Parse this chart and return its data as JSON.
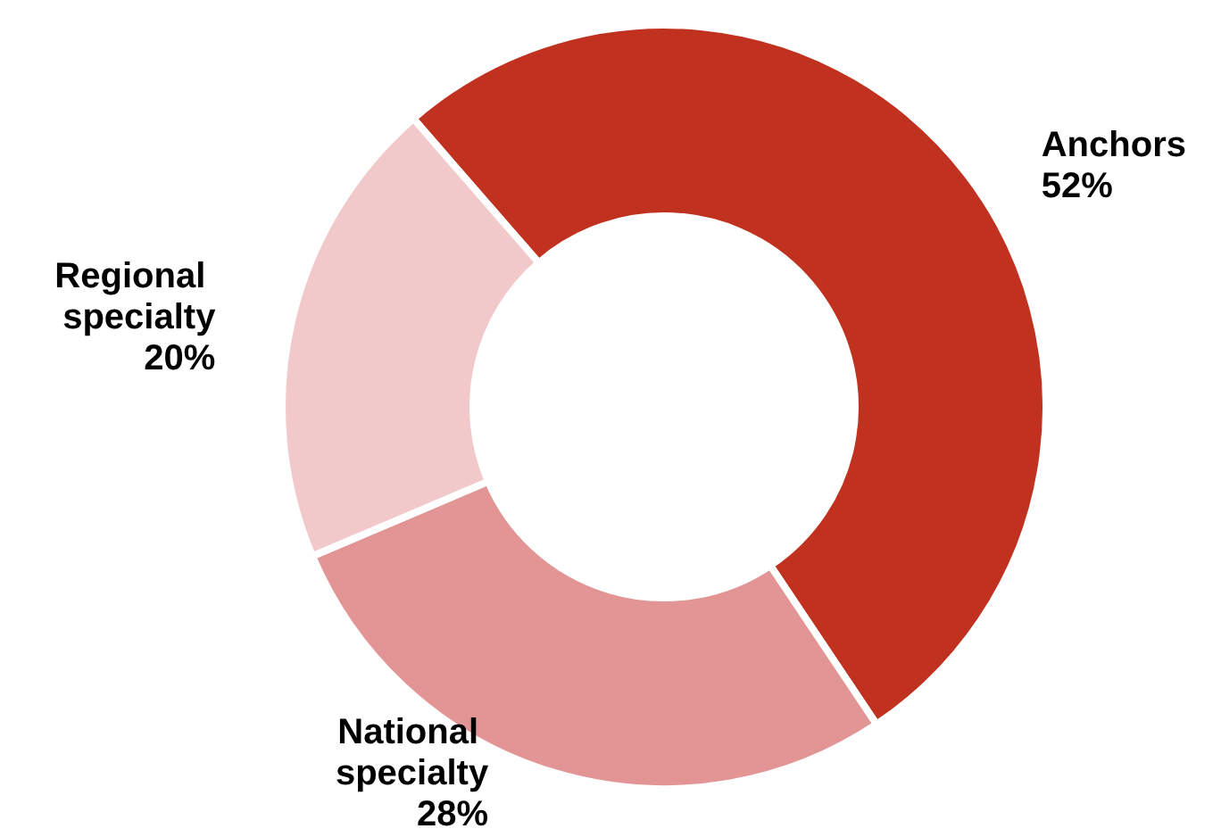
{
  "chart_data": {
    "type": "donut",
    "categories": [
      "Anchors",
      "National specialty",
      "Regional specialty"
    ],
    "values": [
      52,
      28,
      20
    ],
    "value_labels": [
      "52%",
      "28%",
      "20%"
    ],
    "colors": [
      "#c0321f",
      "#e39595",
      "#f2c9cb"
    ],
    "legend": false
  }
}
